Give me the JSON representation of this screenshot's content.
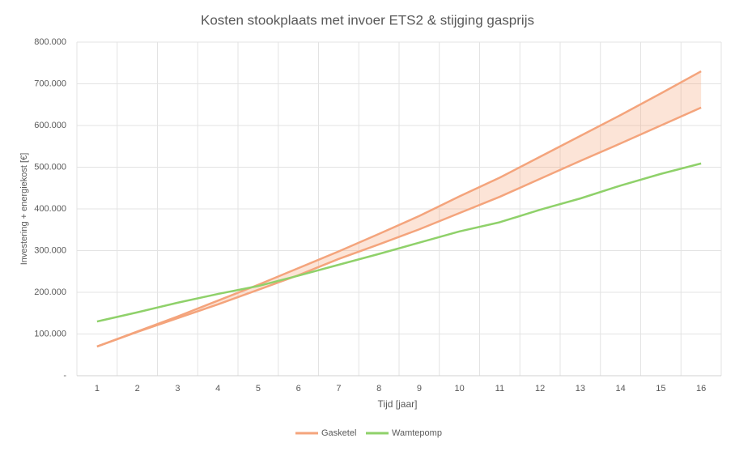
{
  "chart_data": {
    "type": "line",
    "title": "Kosten stookplaats met invoer ETS2 & stijging gasprijs",
    "y_label": "Investering + energiekost [€]",
    "x_label": "Tijd [jaar]",
    "categories": [
      "1",
      "2",
      "3",
      "4",
      "5",
      "6",
      "7",
      "8",
      "9",
      "10",
      "11",
      "12",
      "13",
      "14",
      "15",
      "16"
    ],
    "series": [
      {
        "name": "Gasketel",
        "color": "#f4a47c",
        "values": [
          70000,
          106000,
          142000,
          180000,
          218000,
          258000,
          298000,
          340000,
          383000,
          430000,
          475000,
          525000,
          575000,
          625000,
          677000,
          730000
        ],
        "values_low": [
          70000,
          105000,
          138000,
          171000,
          206000,
          241000,
          280000,
          315000,
          351000,
          390000,
          429000,
          472000,
          515000,
          557000,
          600000,
          643000
        ]
      },
      {
        "name": "Wamtepomp",
        "color": "#8fd16a",
        "values": [
          130000,
          152000,
          175000,
          196000,
          215000,
          240000,
          266000,
          292000,
          319000,
          346000,
          368000,
          398000,
          425000,
          456000,
          484000,
          509000
        ]
      }
    ],
    "ylim": [
      0,
      800000
    ],
    "yticks": [
      {
        "value": 0,
        "label": "-"
      },
      {
        "value": 100000,
        "label": "100.000"
      },
      {
        "value": 200000,
        "label": "200.000"
      },
      {
        "value": 300000,
        "label": "300.000"
      },
      {
        "value": 400000,
        "label": "400.000"
      },
      {
        "value": 500000,
        "label": "500.000"
      },
      {
        "value": 600000,
        "label": "600.000"
      },
      {
        "value": 700000,
        "label": "700.000"
      },
      {
        "value": 800000,
        "label": "800.000"
      }
    ],
    "grid": true,
    "legend": "bottom"
  }
}
